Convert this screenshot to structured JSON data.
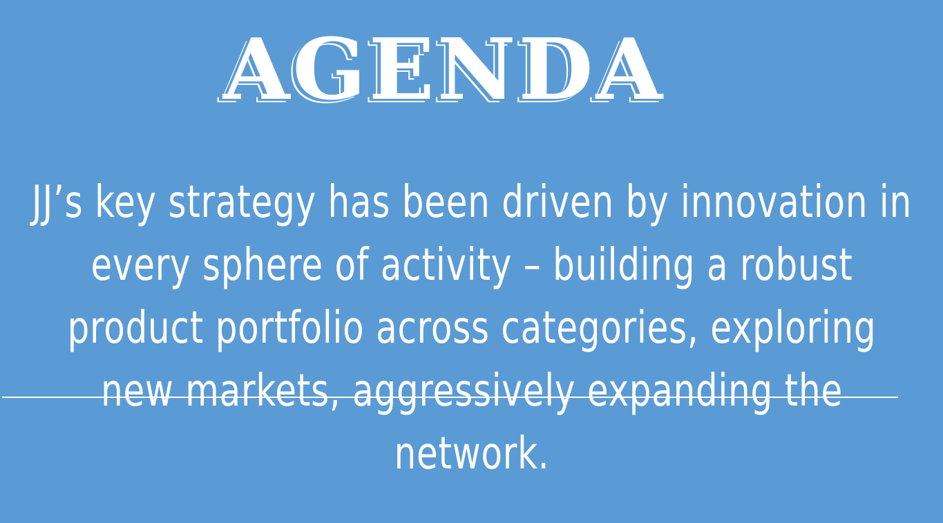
{
  "slide": {
    "title": "AGENDA",
    "body": "JJ’s key strategy has been driven by innovation in every sphere of activity – building a robust product portfolio across categories, exploring new markets, aggressively expanding the network.",
    "background_color": "#5b9bd5",
    "text_color": "#ffffff"
  }
}
